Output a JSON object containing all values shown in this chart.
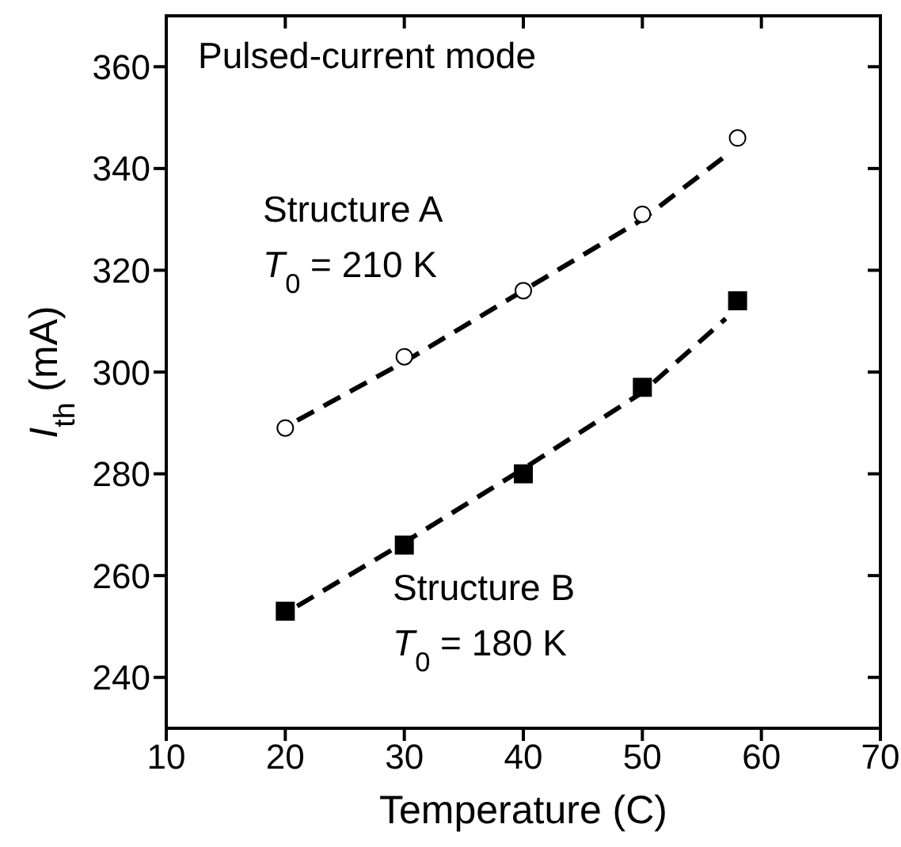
{
  "chart_data": {
    "type": "scatter",
    "title": "Pulsed-current mode",
    "xlabel": "Temperature (C)",
    "ylabel": "I$_{th}$ (mA)",
    "annotations": [
      "T$_{0}$ = 210 K",
      "T$_{0}$ = 180 K"
    ],
    "x": [
      20,
      30,
      40,
      50,
      58
    ],
    "series": [
      {
        "name": "Structure A",
        "color": "#000000",
        "marker": "circle",
        "values": [
          289,
          303,
          316,
          331,
          346
        ]
      },
      {
        "name": "Structure B",
        "color": "#000000",
        "marker": "square",
        "values": [
          253,
          266,
          280,
          297,
          314
        ]
      },
      {
        "type": "line",
        "color": "#000000",
        "line_style": "dashed",
        "marker": "none",
        "x": [
          21,
          30,
          40,
          50,
          57
        ],
        "values": [
          290.5,
          302,
          316,
          330,
          342.5
        ]
      },
      {
        "type": "line",
        "color": "#000000",
        "line_style": "dashed",
        "marker": "none",
        "x": [
          21,
          30,
          40,
          50,
          57
        ],
        "values": [
          254,
          266.5,
          281,
          296,
          310.5
        ]
      }
    ],
    "xlim": [
      10,
      70
    ],
    "xticks": [
      10,
      20,
      30,
      40,
      50,
      60,
      70
    ],
    "ylim": [
      230,
      370
    ],
    "yticks": [
      240,
      260,
      280,
      300,
      320,
      340,
      360
    ],
    "grid": false,
    "legend": false
  }
}
